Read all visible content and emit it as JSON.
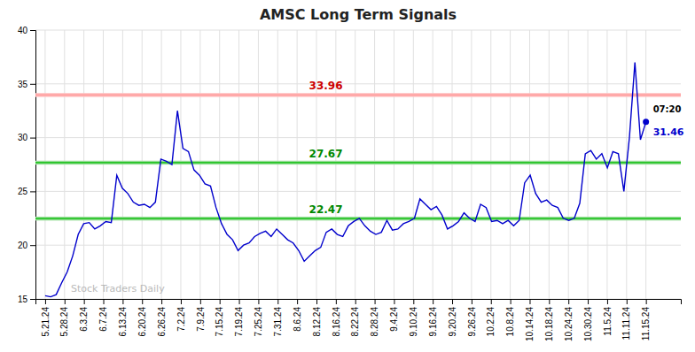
{
  "chart_data": {
    "type": "line",
    "title": "AMSC Long Term Signals",
    "xlim": [
      -0.5,
      32.8
    ],
    "xticks": [
      {
        "value": 0,
        "label": "5.21.24"
      },
      {
        "value": 1,
        "label": "5.28.24"
      },
      {
        "value": 2,
        "label": "6.3.24"
      },
      {
        "value": 3,
        "label": "6.7.24"
      },
      {
        "value": 4,
        "label": "6.13.24"
      },
      {
        "value": 5,
        "label": "6.20.24"
      },
      {
        "value": 6,
        "label": "6.26.24"
      },
      {
        "value": 7,
        "label": "7.2.24"
      },
      {
        "value": 8,
        "label": "7.9.24"
      },
      {
        "value": 9,
        "label": "7.15.24"
      },
      {
        "value": 10,
        "label": "7.19.24"
      },
      {
        "value": 11,
        "label": "7.25.24"
      },
      {
        "value": 12,
        "label": "7.31.24"
      },
      {
        "value": 13,
        "label": "8.6.24"
      },
      {
        "value": 14,
        "label": "8.12.24"
      },
      {
        "value": 15,
        "label": "8.16.24"
      },
      {
        "value": 16,
        "label": "8.22.24"
      },
      {
        "value": 17,
        "label": "8.28.24"
      },
      {
        "value": 18,
        "label": "9.4.24"
      },
      {
        "value": 19,
        "label": "9.10.24"
      },
      {
        "value": 20,
        "label": "9.16.24"
      },
      {
        "value": 21,
        "label": "9.20.24"
      },
      {
        "value": 22,
        "label": "9.26.24"
      },
      {
        "value": 23,
        "label": "10.2.24"
      },
      {
        "value": 24,
        "label": "10.8.24"
      },
      {
        "value": 25,
        "label": "10.14.24"
      },
      {
        "value": 26,
        "label": "10.18.24"
      },
      {
        "value": 27,
        "label": "10.24.24"
      },
      {
        "value": 28,
        "label": "10.30.24"
      },
      {
        "value": 29,
        "label": "11.5.24"
      },
      {
        "value": 30,
        "label": "11.11.24"
      },
      {
        "value": 31,
        "label": "11.15.24"
      }
    ],
    "ylim": [
      15,
      40
    ],
    "yticks": [
      15,
      20,
      25,
      30,
      35,
      40
    ],
    "grid": true,
    "series": [
      {
        "color": "#0000CC",
        "values": [
          15.3,
          15.2,
          15.4,
          16.5,
          17.5,
          19.0,
          21.0,
          22.0,
          22.1,
          21.5,
          21.8,
          22.2,
          22.1,
          26.5,
          25.3,
          24.8,
          24.0,
          23.7,
          23.8,
          23.5,
          24.0,
          28.0,
          27.8,
          27.5,
          32.5,
          29.0,
          28.7,
          27.0,
          26.5,
          25.7,
          25.5,
          23.5,
          22.0,
          21.0,
          20.5,
          19.5,
          20.0,
          20.2,
          20.8,
          21.1,
          21.3,
          20.8,
          21.5,
          21.0,
          20.5,
          20.2,
          19.5,
          18.5,
          19.0,
          19.5,
          19.8,
          21.2,
          21.5,
          21.0,
          20.8,
          21.8,
          22.2,
          22.5,
          21.8,
          21.3,
          21.0,
          21.2,
          22.3,
          21.4,
          21.5,
          22.0,
          22.2,
          22.5,
          24.3,
          23.8,
          23.3,
          23.6,
          22.8,
          21.5,
          21.8,
          22.2,
          23.0,
          22.5,
          22.2,
          23.8,
          23.5,
          22.2,
          22.3,
          22.0,
          22.3,
          21.8,
          22.3,
          25.8,
          26.5,
          24.8,
          24.0,
          24.2,
          23.7,
          23.5,
          22.5,
          22.3,
          22.5,
          23.9,
          28.5,
          28.8,
          28.0,
          28.5,
          27.2,
          28.7,
          28.5,
          25.0,
          30.0,
          37.0,
          29.8,
          31.46
        ]
      }
    ],
    "hlines": [
      {
        "value": 33.96,
        "half_width": 0.18,
        "label": "33.96",
        "color": "#FF9999",
        "fill_color": "#FFBBBB",
        "label_color": "#CC0000"
      },
      {
        "value": 27.67,
        "half_width": 0.18,
        "label": "27.67",
        "color": "#00BB00",
        "fill_color": "#99DD99",
        "label_color": "#008800"
      },
      {
        "value": 22.47,
        "half_width": 0.18,
        "label": "22.47",
        "color": "#00BB00",
        "fill_color": "#99DD99",
        "label_color": "#008800"
      }
    ],
    "annotations": [
      {
        "text": "07:20",
        "color": "#000000"
      },
      {
        "text": "31.46",
        "color": "#0000CC"
      }
    ],
    "watermark": "Stock Traders Daily"
  }
}
